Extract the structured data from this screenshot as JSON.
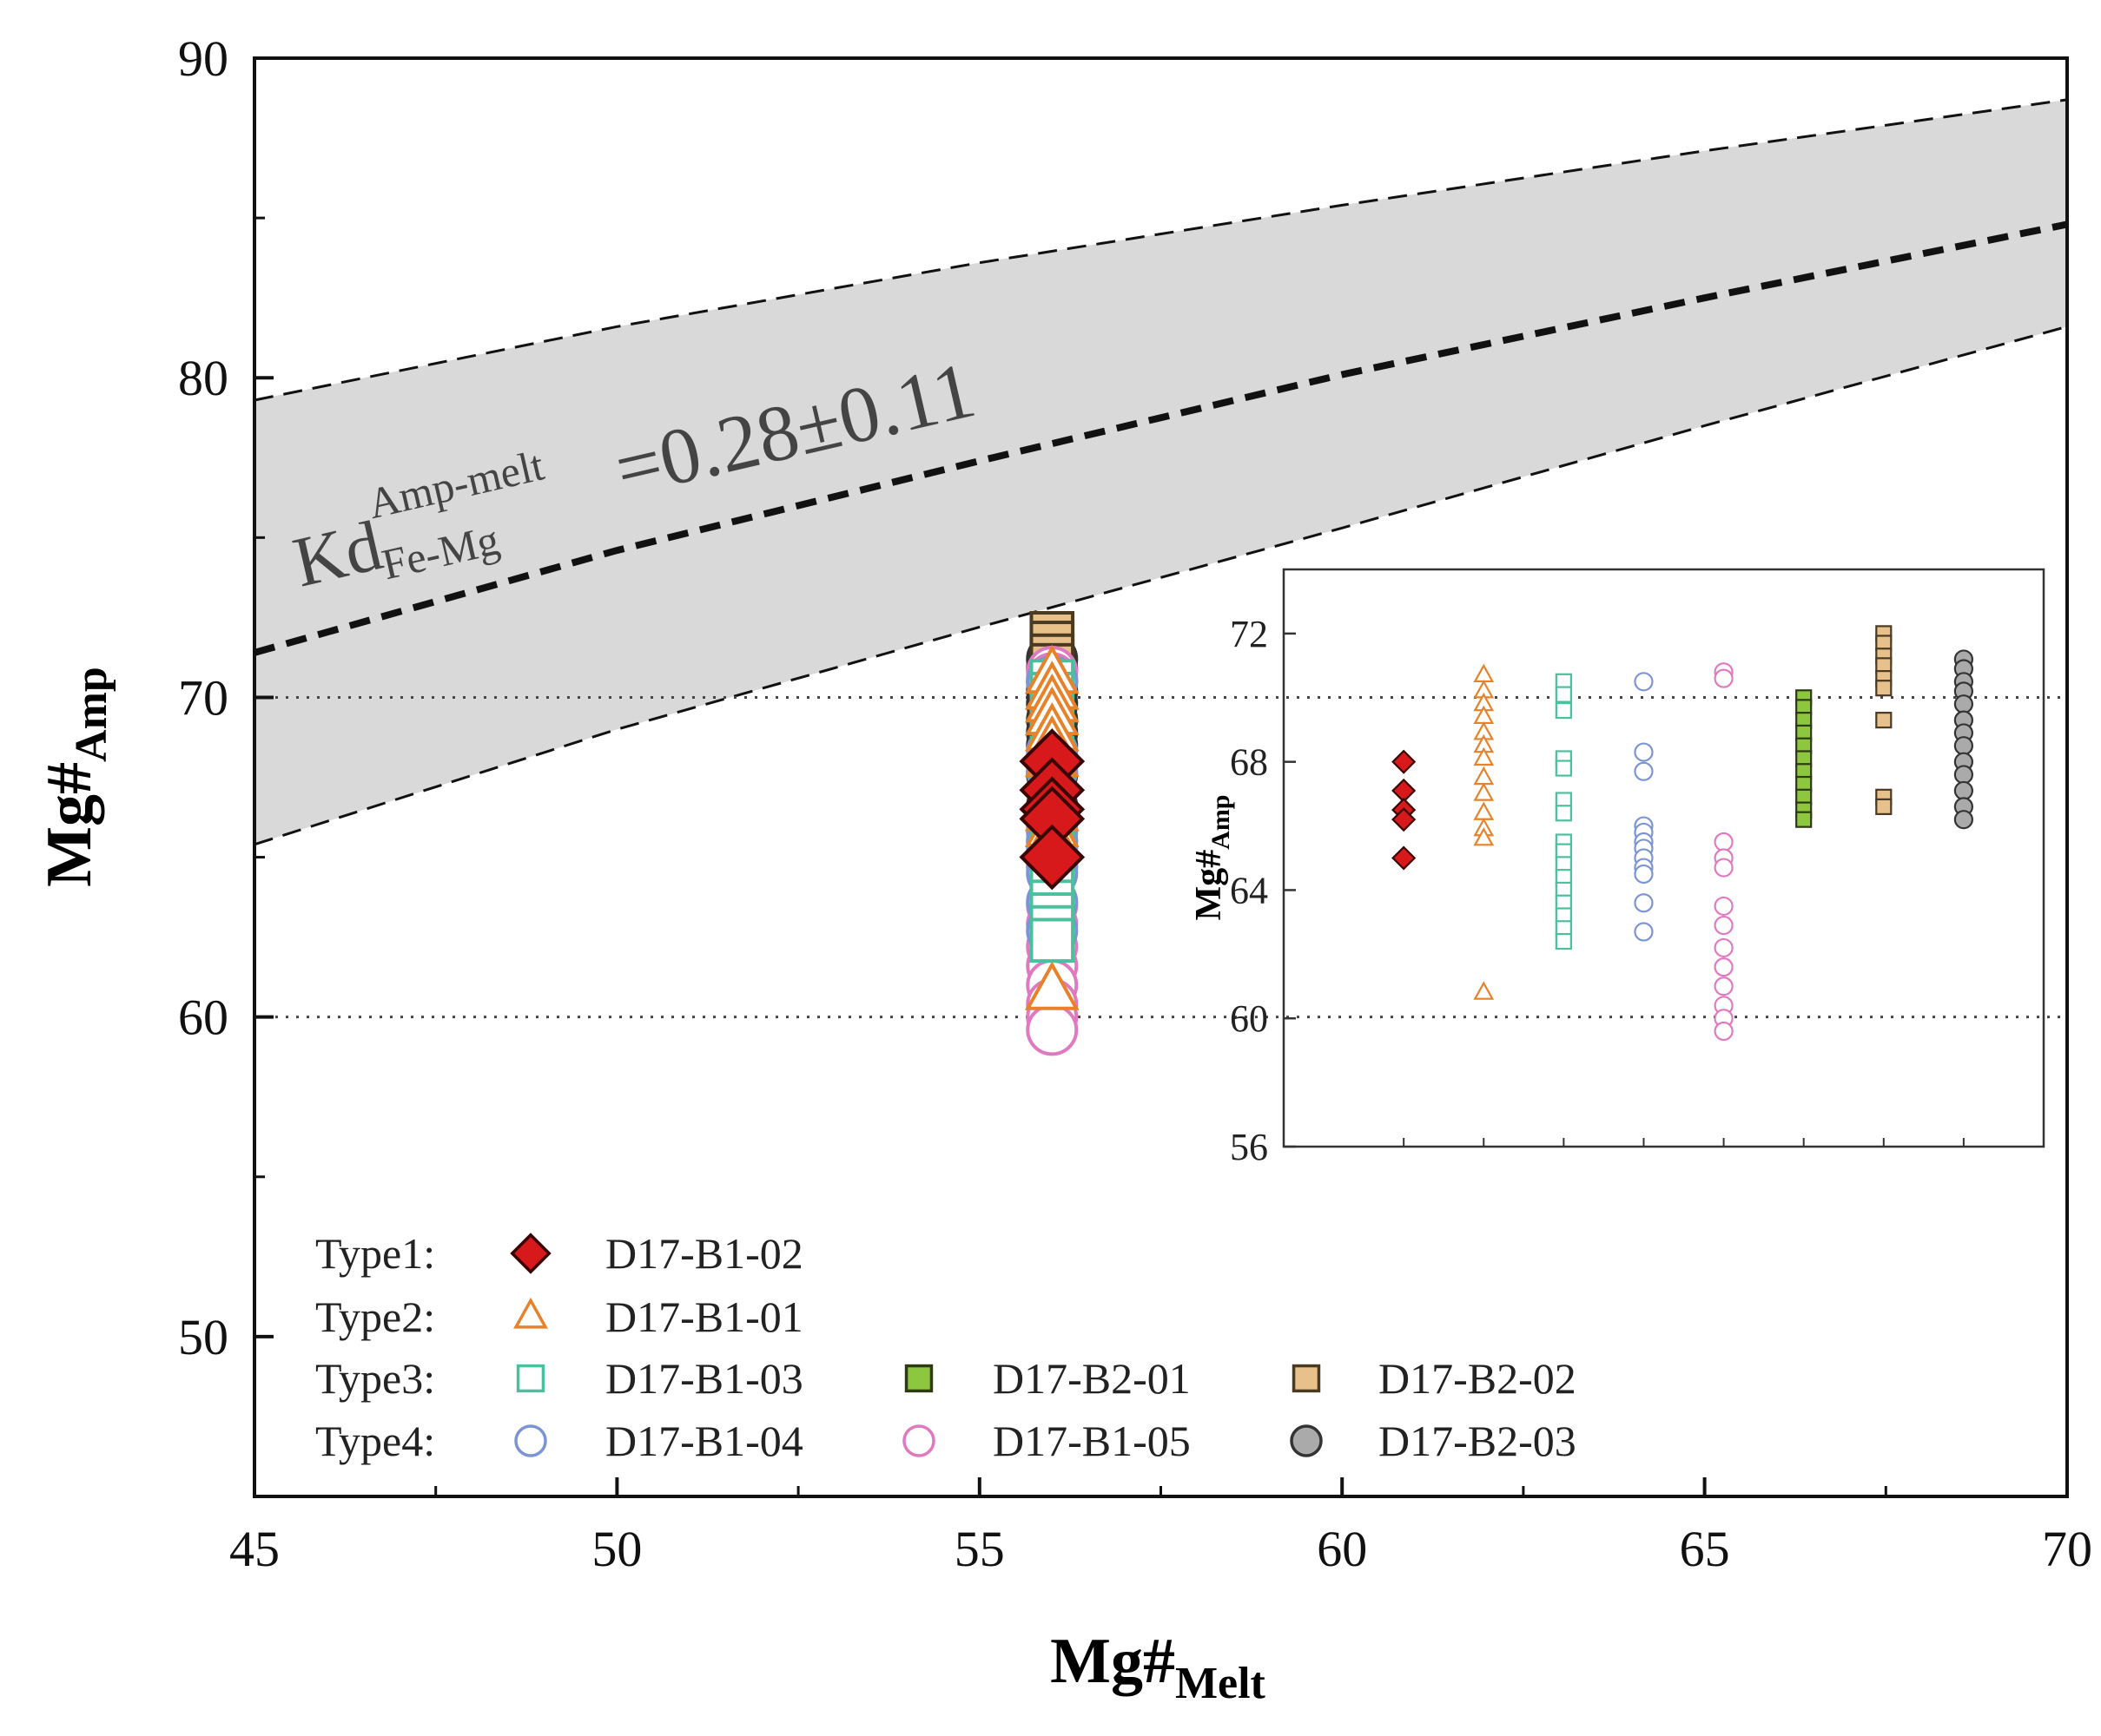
{
  "chart_data": [
    {
      "type": "scatter",
      "xlim": [
        45,
        70
      ],
      "xticks": [
        45,
        50,
        55,
        60,
        65,
        70
      ],
      "ylim": [
        45,
        90
      ],
      "yticks": [
        50,
        60,
        70,
        80,
        90
      ],
      "x_minor_ticks": [
        47.5,
        52.5,
        57.5,
        62.5,
        67.5
      ],
      "y_minor_ticks": [
        55,
        65,
        75,
        85
      ],
      "xlabel": "Mg#",
      "xlabel_sub": "Melt",
      "ylabel": "Mg#",
      "ylabel_sub": "Amp",
      "reference_lines": [
        60,
        70
      ],
      "band": {
        "x": [
          45,
          50,
          55,
          60,
          65,
          70
        ],
        "upper": [
          79.3,
          81.6,
          83.6,
          85.4,
          87.1,
          88.7
        ],
        "center": [
          71.4,
          74.6,
          77.4,
          80.1,
          82.5,
          84.8
        ],
        "lower": [
          65.4,
          69.0,
          72.2,
          75.3,
          78.5,
          81.6
        ],
        "color": "#d9d9d9"
      },
      "annotation": {
        "base": "Kd",
        "sup": "Amp-melt",
        "sub": "Fe-Mg",
        "text": "=0.28±0.11"
      },
      "groups": [
        {
          "name": "Type1:",
          "members": [
            "D17-B1-02"
          ]
        },
        {
          "name": "Type2:",
          "members": [
            "D17-B1-01"
          ]
        },
        {
          "name": "Type3:",
          "members": [
            "D17-B1-03",
            "D17-B2-01",
            "D17-B2-02"
          ]
        },
        {
          "name": "Type4:",
          "members": [
            "D17-B1-04",
            "D17-B1-05",
            "D17-B2-03"
          ]
        }
      ],
      "series": [
        {
          "name": "D17-B1-02",
          "marker": "diamond",
          "color": "#3a0505",
          "fill": "#d7191c",
          "x": [
            56,
            56,
            56,
            56,
            56
          ],
          "values": [
            68.0,
            67.1,
            66.5,
            66.2,
            65.0
          ]
        },
        {
          "name": "D17-B1-01",
          "marker": "triangle",
          "color": "#e8822a",
          "fill": "#ffffff",
          "x": [
            56,
            56,
            56,
            56,
            56,
            56,
            56,
            56,
            56,
            56,
            56,
            56,
            56
          ],
          "values": [
            70.7,
            70.2,
            69.8,
            69.4,
            68.9,
            68.5,
            68.1,
            67.5,
            67.0,
            66.4,
            65.9,
            65.6,
            60.8
          ]
        },
        {
          "name": "D17-B1-03",
          "marker": "square",
          "color": "#4cbf9f",
          "fill": "#ffffff",
          "x": [
            56,
            56,
            56,
            56,
            56,
            56,
            56,
            56,
            56,
            56,
            56,
            56,
            56,
            56,
            56,
            56
          ],
          "values": [
            70.5,
            70.1,
            69.6,
            68.1,
            67.8,
            66.8,
            66.4,
            65.5,
            65.2,
            64.8,
            64.4,
            64.0,
            63.6,
            63.2,
            62.8,
            62.4
          ]
        },
        {
          "name": "D17-B1-04",
          "marker": "circle",
          "color": "#7b95d4",
          "fill": "#ffffff",
          "x": [
            56,
            56,
            56,
            56,
            56,
            56,
            56,
            56,
            56,
            56,
            56,
            56
          ],
          "values": [
            70.5,
            68.3,
            67.7,
            66.0,
            65.8,
            65.5,
            65.3,
            65.0,
            64.7,
            64.5,
            63.6,
            62.7
          ]
        },
        {
          "name": "D17-B1-05",
          "marker": "circle",
          "color": "#e07ac0",
          "fill": "#ffffff",
          "x": [
            56,
            56,
            56,
            56,
            56,
            56,
            56,
            56,
            56,
            56,
            56,
            56,
            56
          ],
          "values": [
            70.8,
            70.6,
            65.5,
            65.0,
            64.7,
            63.5,
            62.9,
            62.2,
            61.6,
            61.0,
            60.4,
            60.0,
            59.6
          ]
        },
        {
          "name": "D17-B2-01",
          "marker": "square",
          "color": "#2d3a12",
          "fill": "#8dc63f",
          "x": [
            56,
            56,
            56,
            56,
            56,
            56,
            56,
            56,
            56,
            56,
            56
          ],
          "values": [
            70.0,
            69.7,
            69.3,
            68.9,
            68.5,
            68.1,
            67.7,
            67.3,
            66.9,
            66.5,
            66.2
          ]
        },
        {
          "name": "D17-B2-02",
          "marker": "square",
          "color": "#4a3a22",
          "fill": "#e8c08a",
          "x": [
            56,
            56,
            56,
            56,
            56,
            56,
            56,
            56,
            56
          ],
          "values": [
            72.0,
            71.7,
            71.3,
            71.0,
            70.6,
            70.3,
            69.3,
            66.9,
            66.6
          ]
        },
        {
          "name": "D17-B2-03",
          "marker": "circle",
          "color": "#333333",
          "fill": "#aaaaaa",
          "x": [
            56,
            56,
            56,
            56,
            56,
            56,
            56,
            56,
            56,
            56,
            56,
            56,
            56
          ],
          "values": [
            71.2,
            70.9,
            70.5,
            70.2,
            69.8,
            69.3,
            68.9,
            68.5,
            68.0,
            67.6,
            67.1,
            66.6,
            66.2
          ]
        }
      ]
    },
    {
      "type": "strip",
      "ylim": [
        56,
        74
      ],
      "yticks": [
        56,
        60,
        64,
        68,
        72
      ],
      "ylabel": "Mg#",
      "ylabel_sub": "Amp"
    }
  ]
}
